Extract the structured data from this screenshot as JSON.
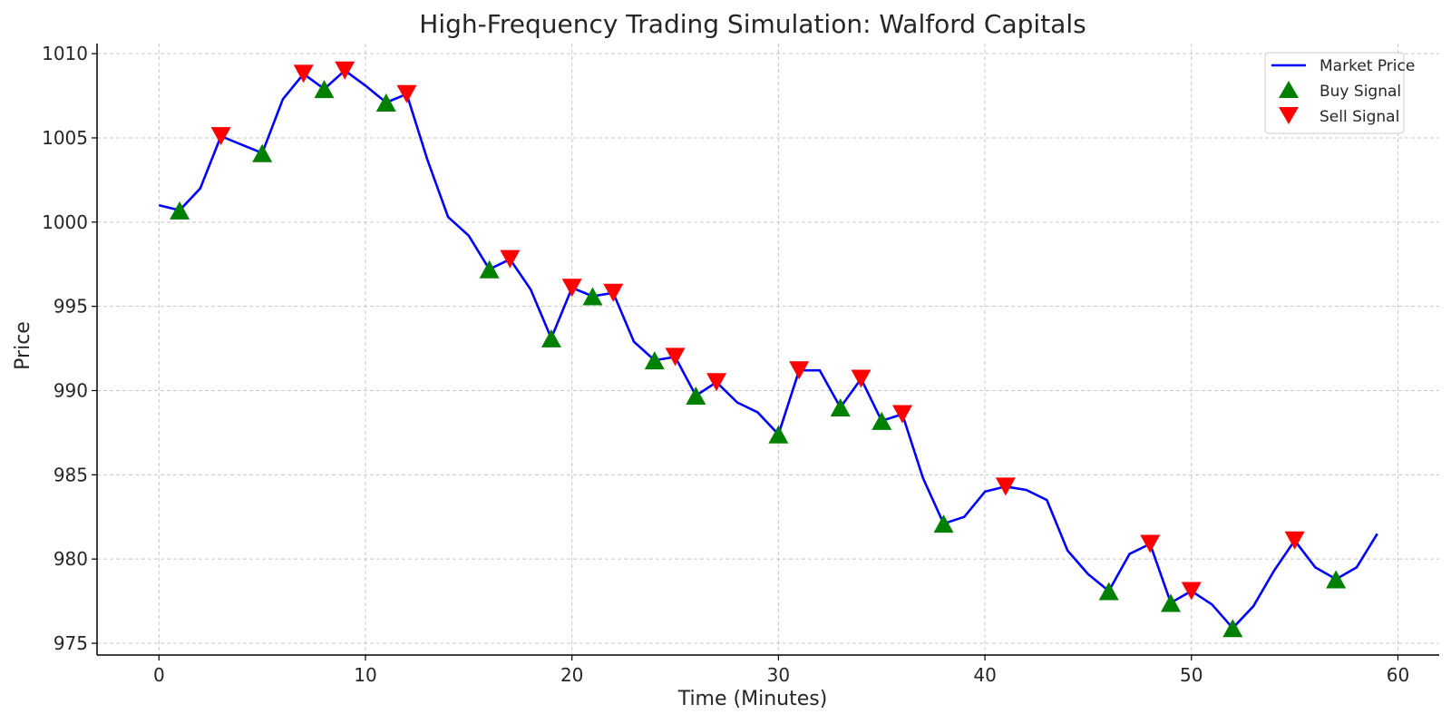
{
  "chart_data": {
    "type": "line",
    "title": "High-Frequency Trading Simulation: Walford Capitals",
    "xlabel": "Time (Minutes)",
    "ylabel": "Price",
    "xlim": [
      -3,
      62
    ],
    "ylim": [
      974.3,
      1010.6
    ],
    "xticks": [
      0,
      10,
      20,
      30,
      40,
      50,
      60
    ],
    "yticks": [
      975,
      980,
      985,
      990,
      995,
      1000,
      1005,
      1010
    ],
    "grid": true,
    "legend_position": "top-right",
    "colors": {
      "line": "#0000ff",
      "buy": "#008000",
      "sell": "#ff0000",
      "grid": "#b0b0b0"
    },
    "series": [
      {
        "name": "Market Price",
        "kind": "line",
        "x": [
          0,
          1,
          2,
          3,
          4,
          5,
          6,
          7,
          8,
          9,
          10,
          11,
          12,
          13,
          14,
          15,
          16,
          17,
          18,
          19,
          20,
          21,
          22,
          23,
          24,
          25,
          26,
          27,
          28,
          29,
          30,
          31,
          32,
          33,
          34,
          35,
          36,
          37,
          38,
          39,
          40,
          41,
          42,
          43,
          44,
          45,
          46,
          47,
          48,
          49,
          50,
          51,
          52,
          53,
          54,
          55,
          56,
          57,
          58,
          59
        ],
        "y": [
          1001.0,
          1000.7,
          1002.0,
          1005.1,
          1004.6,
          1004.1,
          1007.3,
          1008.8,
          1007.9,
          1009.0,
          1008.1,
          1007.1,
          1007.6,
          1003.7,
          1000.3,
          999.2,
          997.2,
          997.8,
          996.0,
          993.1,
          996.1,
          995.6,
          995.8,
          992.9,
          991.8,
          992.0,
          989.7,
          990.5,
          989.3,
          988.7,
          987.4,
          991.2,
          991.2,
          989.0,
          990.7,
          988.2,
          988.6,
          984.8,
          982.1,
          982.5,
          984.0,
          984.3,
          984.1,
          983.5,
          980.5,
          979.1,
          978.1,
          980.3,
          980.9,
          977.4,
          978.1,
          977.3,
          975.9,
          977.2,
          979.3,
          981.1,
          979.5,
          978.8,
          979.5,
          981.5
        ]
      },
      {
        "name": "Buy Signal",
        "kind": "markers",
        "marker": "triangle-up",
        "x": [
          1,
          5,
          8,
          11,
          16,
          19,
          21,
          24,
          26,
          30,
          33,
          35,
          38,
          46,
          49,
          52,
          57
        ],
        "y": [
          1000.7,
          1004.1,
          1007.9,
          1007.1,
          997.2,
          993.1,
          995.6,
          991.8,
          989.7,
          987.4,
          989.0,
          988.2,
          982.1,
          978.1,
          977.4,
          975.9,
          978.8
        ]
      },
      {
        "name": "Sell Signal",
        "kind": "markers",
        "marker": "triangle-down",
        "x": [
          3,
          7,
          9,
          12,
          17,
          20,
          22,
          25,
          27,
          31,
          34,
          36,
          41,
          48,
          50,
          55
        ],
        "y": [
          1005.1,
          1008.8,
          1009.0,
          1007.6,
          997.8,
          996.1,
          995.8,
          992.0,
          990.5,
          991.2,
          990.7,
          988.6,
          984.3,
          980.9,
          978.1,
          981.1
        ]
      }
    ]
  }
}
